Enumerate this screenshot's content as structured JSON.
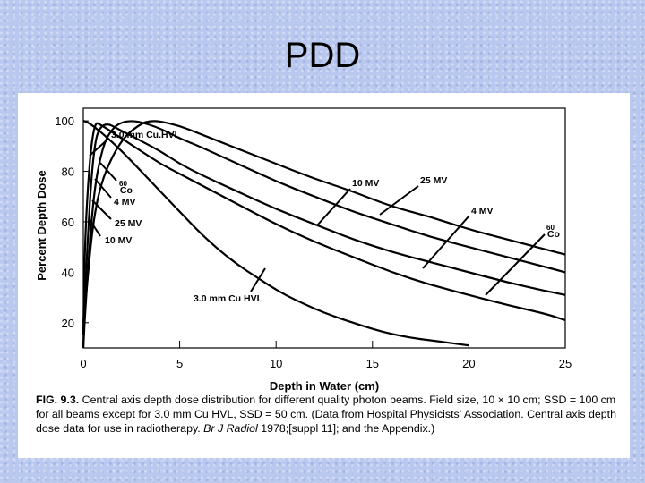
{
  "slide": {
    "title": "PDD"
  },
  "chart_data": {
    "type": "line",
    "xlabel": "Depth in Water (cm)",
    "ylabel": "Percent Depth Dose",
    "xlim": [
      0,
      25
    ],
    "ylim": [
      10,
      105
    ],
    "x_ticks": [
      "0",
      "5",
      "10",
      "15",
      "20",
      "25"
    ],
    "y_ticks": [
      "100",
      "80",
      "60",
      "40",
      "20"
    ],
    "grid": false,
    "legend": "none (curves labeled directly)",
    "series": [
      {
        "name": "3.0 mm Cu HVL",
        "x": [
          0,
          0.2,
          0.5,
          1,
          2,
          3,
          4,
          5,
          6,
          7,
          8,
          9,
          10,
          11,
          12,
          13,
          14,
          15,
          16,
          17,
          18,
          19,
          20
        ],
        "y": [
          100,
          99.5,
          98,
          95,
          88,
          80,
          72,
          64,
          56,
          49,
          43,
          38,
          33,
          29,
          25.5,
          22.5,
          20,
          17.5,
          15.5,
          14,
          13,
          12,
          11
        ]
      },
      {
        "name": "60Co",
        "x": [
          0,
          0.1,
          0.5,
          1,
          2,
          3,
          4,
          5,
          6,
          8,
          10,
          12,
          14,
          16,
          18,
          20,
          22,
          24,
          25
        ],
        "y": [
          15,
          60,
          100,
          98,
          93,
          88,
          83,
          79,
          75,
          67,
          59,
          52,
          46,
          40,
          35,
          31,
          27,
          23.5,
          21
        ]
      },
      {
        "name": "4 MV",
        "x": [
          0,
          0.1,
          0.5,
          1,
          2,
          3,
          4,
          5,
          6,
          8,
          10,
          12,
          14,
          16,
          18,
          20,
          22,
          24,
          25
        ],
        "y": [
          10,
          35,
          90,
          100,
          96,
          92,
          88,
          83,
          79,
          72,
          65,
          59,
          53,
          48,
          44,
          40,
          36,
          32.5,
          31
        ]
      },
      {
        "name": "10 MV",
        "x": [
          0,
          0.1,
          0.5,
          1,
          1.5,
          2,
          2.5,
          3,
          4,
          5,
          6,
          8,
          10,
          12,
          14,
          16,
          18,
          20,
          22,
          24,
          25
        ],
        "y": [
          10,
          25,
          70,
          90,
          97,
          99.5,
          100,
          99.5,
          97,
          93,
          90,
          83,
          76,
          70,
          64,
          59,
          54,
          50,
          46,
          42,
          40
        ]
      },
      {
        "name": "25 MV",
        "x": [
          0,
          0.2,
          0.5,
          1,
          2,
          3,
          3.5,
          4,
          5,
          6,
          8,
          10,
          12,
          14,
          16,
          18,
          20,
          22,
          24,
          25
        ],
        "y": [
          20,
          35,
          60,
          78,
          93,
          99,
          100,
          99.8,
          98,
          95,
          89,
          83,
          77,
          72,
          66,
          62,
          57,
          53,
          49,
          47
        ]
      }
    ],
    "curve_labels": [
      {
        "text": "3.0 mm Cu.HVL",
        "target": "3.0 mm Cu HVL"
      },
      {
        "text": "3.0 mm Cu HVL",
        "target": "3.0 mm Cu HVL"
      },
      {
        "text": "60",
        "text2": "Co",
        "target": "60Co"
      },
      {
        "text": "60",
        "text2": "Co",
        "target": "60Co"
      },
      {
        "text": "4 MV",
        "target": "4 MV"
      },
      {
        "text": "4 MV",
        "target": "4 MV"
      },
      {
        "text": "25 MV",
        "target": "25 MV"
      },
      {
        "text": "25 MV",
        "target": "25 MV"
      },
      {
        "text": "10 MV",
        "target": "10 MV"
      },
      {
        "text": "10 MV",
        "target": "10 MV"
      }
    ],
    "caption": {
      "label": "FIG. 9.3.",
      "text": "Central axis depth dose distribution for different quality photon beams. Field size, 10 × 10 cm; SSD = 100 cm for all beams except for 3.0 mm Cu HVL, SSD = 50 cm. (Data from Hospital Physicists' Association. Central axis depth dose data for use in radiotherapy.",
      "journal": "Br J Radiol",
      "tail": "1978;[suppl 11]; and the Appendix.)"
    }
  }
}
